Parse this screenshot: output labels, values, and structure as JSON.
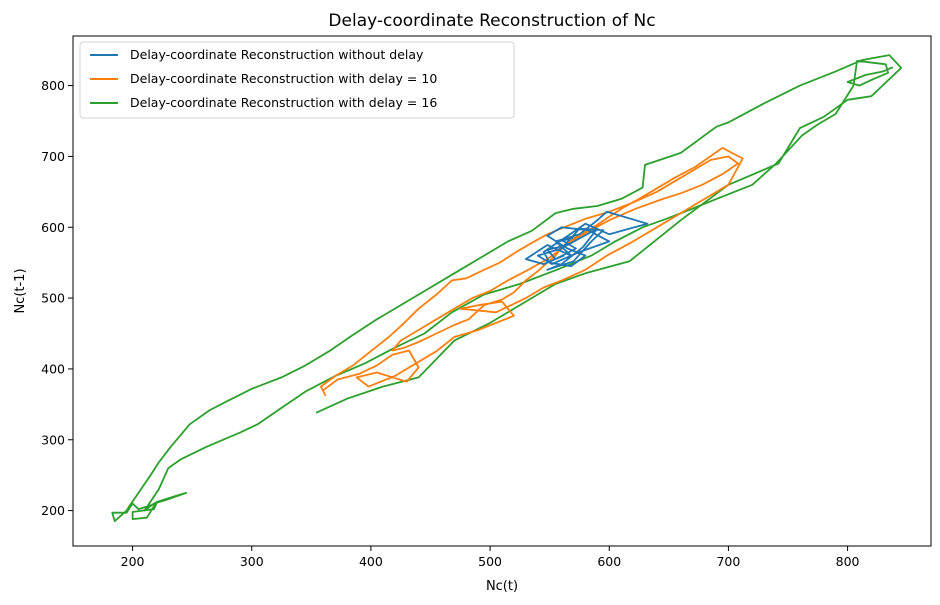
{
  "chart_data": {
    "type": "line",
    "title": "Delay-coordinate Reconstruction of Nc",
    "xlabel": "Nc(t)",
    "ylabel": "Nc(t-1)",
    "xlim": [
      150,
      870
    ],
    "ylim": [
      150,
      870
    ],
    "xticks": [
      200,
      300,
      400,
      500,
      600,
      700,
      800
    ],
    "yticks": [
      200,
      300,
      400,
      500,
      600,
      700,
      800
    ],
    "grid": false,
    "legend_position": "top-left",
    "series": [
      {
        "name": "Delay-coordinate Reconstruction without delay",
        "color": "#1f77b4",
        "points": [
          [
            562,
            560
          ],
          [
            545,
            548
          ],
          [
            530,
            555
          ],
          [
            548,
            575
          ],
          [
            568,
            560
          ],
          [
            555,
            580
          ],
          [
            575,
            590
          ],
          [
            590,
            610
          ],
          [
            598,
            622
          ],
          [
            632,
            605
          ],
          [
            600,
            590
          ],
          [
            580,
            605
          ],
          [
            560,
            582
          ],
          [
            572,
            570
          ],
          [
            555,
            555
          ],
          [
            548,
            568
          ],
          [
            565,
            575
          ],
          [
            590,
            598
          ],
          [
            578,
            572
          ],
          [
            560,
            548
          ],
          [
            548,
            540
          ],
          [
            570,
            552
          ],
          [
            585,
            580
          ],
          [
            595,
            596
          ],
          [
            575,
            598
          ],
          [
            560,
            570
          ],
          [
            540,
            560
          ],
          [
            552,
            548
          ],
          [
            575,
            565
          ],
          [
            600,
            580
          ],
          [
            582,
            596
          ],
          [
            560,
            600
          ],
          [
            548,
            588
          ],
          [
            565,
            570
          ],
          [
            580,
            560
          ],
          [
            568,
            545
          ],
          [
            550,
            550
          ],
          [
            545,
            565
          ],
          [
            558,
            580
          ],
          [
            570,
            585
          ]
        ]
      },
      {
        "name": "Delay-coordinate Reconstruction with delay = 10",
        "color": "#ff7f0e",
        "points": [
          [
            360,
            370
          ],
          [
            372,
            385
          ],
          [
            390,
            393
          ],
          [
            405,
            405
          ],
          [
            418,
            420
          ],
          [
            432,
            426
          ],
          [
            440,
            402
          ],
          [
            430,
            382
          ],
          [
            405,
            395
          ],
          [
            388,
            388
          ],
          [
            398,
            375
          ],
          [
            420,
            390
          ],
          [
            440,
            410
          ],
          [
            455,
            425
          ],
          [
            470,
            445
          ],
          [
            490,
            455
          ],
          [
            520,
            475
          ],
          [
            510,
            495
          ],
          [
            490,
            490
          ],
          [
            475,
            485
          ],
          [
            505,
            480
          ],
          [
            530,
            500
          ],
          [
            545,
            515
          ],
          [
            560,
            525
          ],
          [
            580,
            540
          ],
          [
            598,
            560
          ],
          [
            618,
            578
          ],
          [
            640,
            600
          ],
          [
            660,
            620
          ],
          [
            680,
            640
          ],
          [
            700,
            660
          ],
          [
            712,
            697
          ],
          [
            695,
            712
          ],
          [
            672,
            685
          ],
          [
            655,
            670
          ],
          [
            640,
            655
          ],
          [
            625,
            640
          ],
          [
            612,
            628
          ],
          [
            600,
            615
          ],
          [
            585,
            598
          ],
          [
            570,
            584
          ],
          [
            560,
            572
          ],
          [
            555,
            560
          ],
          [
            548,
            550
          ],
          [
            540,
            538
          ],
          [
            530,
            525
          ],
          [
            520,
            508
          ],
          [
            510,
            498
          ],
          [
            495,
            490
          ],
          [
            482,
            470
          ],
          [
            470,
            462
          ],
          [
            455,
            450
          ],
          [
            440,
            438
          ],
          [
            428,
            430
          ],
          [
            418,
            426
          ],
          [
            425,
            440
          ],
          [
            440,
            455
          ],
          [
            455,
            470
          ],
          [
            470,
            485
          ],
          [
            485,
            500
          ],
          [
            500,
            510
          ],
          [
            515,
            525
          ],
          [
            532,
            540
          ],
          [
            548,
            555
          ],
          [
            562,
            572
          ],
          [
            578,
            590
          ],
          [
            600,
            610
          ],
          [
            622,
            626
          ],
          [
            645,
            640
          ],
          [
            660,
            648
          ],
          [
            678,
            660
          ],
          [
            695,
            675
          ],
          [
            708,
            690
          ],
          [
            700,
            700
          ],
          [
            685,
            695
          ],
          [
            670,
            680
          ],
          [
            655,
            665
          ],
          [
            640,
            650
          ],
          [
            620,
            635
          ],
          [
            600,
            622
          ],
          [
            580,
            612
          ],
          [
            562,
            600
          ],
          [
            548,
            590
          ],
          [
            535,
            578
          ],
          [
            522,
            565
          ],
          [
            508,
            550
          ],
          [
            495,
            540
          ],
          [
            480,
            528
          ],
          [
            468,
            525
          ],
          [
            455,
            505
          ],
          [
            440,
            485
          ],
          [
            428,
            465
          ],
          [
            415,
            445
          ],
          [
            400,
            425
          ],
          [
            385,
            405
          ],
          [
            370,
            390
          ],
          [
            358,
            375
          ],
          [
            362,
            362
          ]
        ]
      },
      {
        "name": "Delay-coordinate Reconstruction with delay = 16",
        "color": "#2ca02c",
        "points": [
          [
            354,
            338
          ],
          [
            380,
            358
          ],
          [
            410,
            375
          ],
          [
            440,
            388
          ],
          [
            470,
            440
          ],
          [
            500,
            465
          ],
          [
            530,
            495
          ],
          [
            555,
            520
          ],
          [
            580,
            535
          ],
          [
            617,
            552
          ],
          [
            660,
            610
          ],
          [
            700,
            660
          ],
          [
            742,
            690
          ],
          [
            760,
            740
          ],
          [
            780,
            756
          ],
          [
            800,
            780
          ],
          [
            820,
            785
          ],
          [
            845,
            825
          ],
          [
            835,
            843
          ],
          [
            812,
            836
          ],
          [
            790,
            820
          ],
          [
            760,
            800
          ],
          [
            730,
            775
          ],
          [
            700,
            748
          ],
          [
            690,
            742
          ],
          [
            660,
            705
          ],
          [
            630,
            688
          ],
          [
            628,
            656
          ],
          [
            610,
            640
          ],
          [
            590,
            630
          ],
          [
            570,
            626
          ],
          [
            555,
            620
          ],
          [
            535,
            595
          ],
          [
            515,
            580
          ],
          [
            495,
            560
          ],
          [
            480,
            545
          ],
          [
            465,
            530
          ],
          [
            450,
            515
          ],
          [
            430,
            495
          ],
          [
            405,
            470
          ],
          [
            385,
            448
          ],
          [
            365,
            425
          ],
          [
            345,
            405
          ],
          [
            325,
            388
          ],
          [
            300,
            372
          ],
          [
            280,
            355
          ],
          [
            265,
            342
          ],
          [
            248,
            322
          ],
          [
            232,
            290
          ],
          [
            222,
            268
          ],
          [
            215,
            250
          ],
          [
            205,
            225
          ],
          [
            198,
            208
          ],
          [
            195,
            200
          ],
          [
            185,
            185
          ],
          [
            183,
            197
          ],
          [
            195,
            197
          ],
          [
            200,
            210
          ],
          [
            205,
            202
          ],
          [
            220,
            210
          ],
          [
            218,
            202
          ],
          [
            208,
            200
          ],
          [
            200,
            198
          ],
          [
            200,
            188
          ],
          [
            212,
            190
          ],
          [
            220,
            212
          ],
          [
            235,
            220
          ],
          [
            245,
            225
          ],
          [
            228,
            215
          ],
          [
            218,
            210
          ],
          [
            210,
            200
          ],
          [
            222,
            230
          ],
          [
            230,
            260
          ],
          [
            240,
            272
          ],
          [
            262,
            290
          ],
          [
            290,
            310
          ],
          [
            305,
            322
          ],
          [
            325,
            345
          ],
          [
            345,
            368
          ],
          [
            370,
            390
          ],
          [
            395,
            408
          ],
          [
            420,
            430
          ],
          [
            445,
            450
          ],
          [
            468,
            480
          ],
          [
            495,
            505
          ],
          [
            525,
            520
          ],
          [
            556,
            540
          ],
          [
            585,
            560
          ],
          [
            605,
            580
          ],
          [
            628,
            600
          ],
          [
            648,
            612
          ],
          [
            668,
            625
          ],
          [
            690,
            640
          ],
          [
            720,
            660
          ],
          [
            740,
            690
          ],
          [
            762,
            730
          ],
          [
            775,
            745
          ],
          [
            790,
            760
          ],
          [
            805,
            800
          ],
          [
            808,
            835
          ],
          [
            832,
            830
          ],
          [
            834,
            818
          ],
          [
            820,
            808
          ],
          [
            810,
            800
          ],
          [
            800,
            805
          ],
          [
            815,
            815
          ],
          [
            830,
            820
          ],
          [
            838,
            826
          ]
        ]
      }
    ]
  }
}
